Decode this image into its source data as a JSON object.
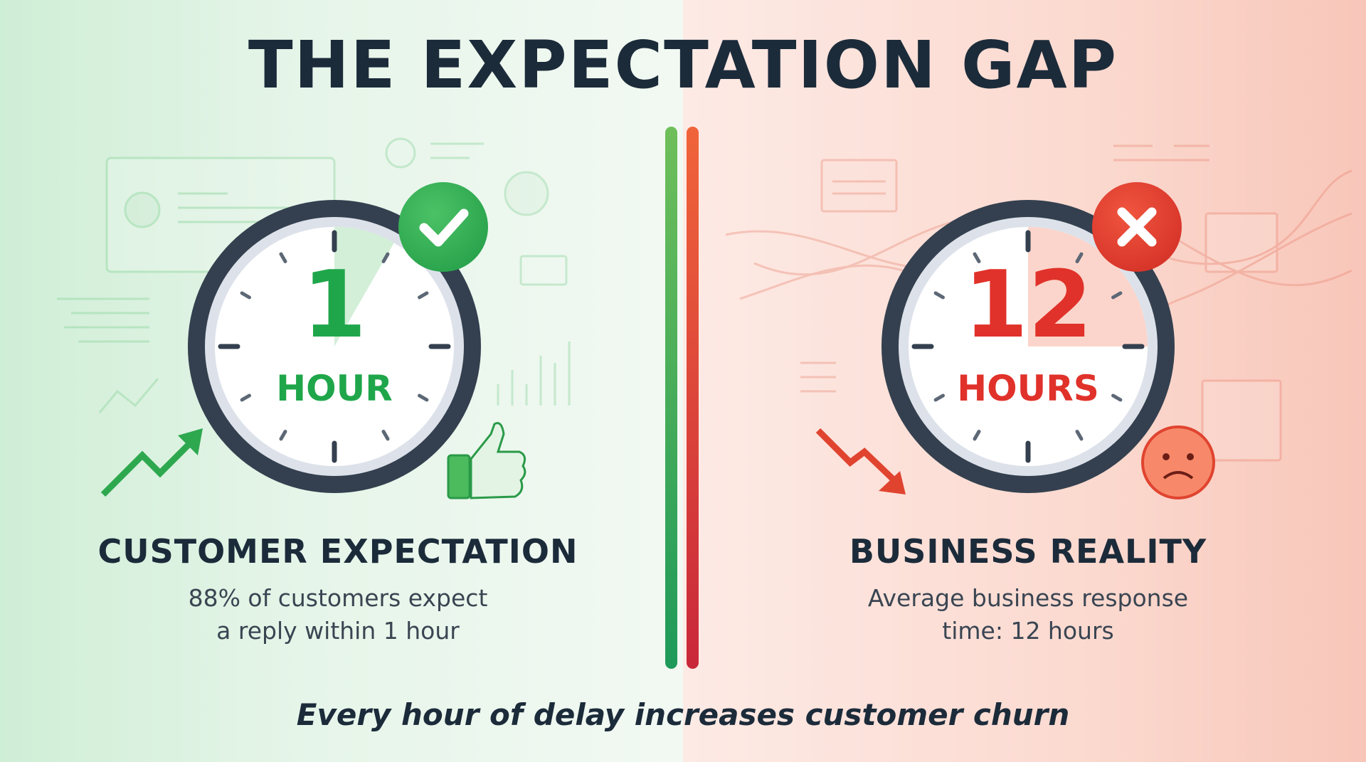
{
  "title": "THE EXPECTATION GAP",
  "left": {
    "clock_value": "1",
    "clock_unit": "HOUR",
    "badge_icon": "check-icon",
    "heading": "CUSTOMER EXPECTATION",
    "line1": "88% of customers expect",
    "line2": "a reply within 1 hour",
    "accent": "#1fa64a"
  },
  "right": {
    "clock_value": "12",
    "clock_unit": "HOURS",
    "badge_icon": "x-icon",
    "heading": "BUSINESS REALITY",
    "line1": "Average business response",
    "line2": "time: 12 hours",
    "accent": "#e0322a"
  },
  "footer": "Every hour of delay increases customer churn"
}
